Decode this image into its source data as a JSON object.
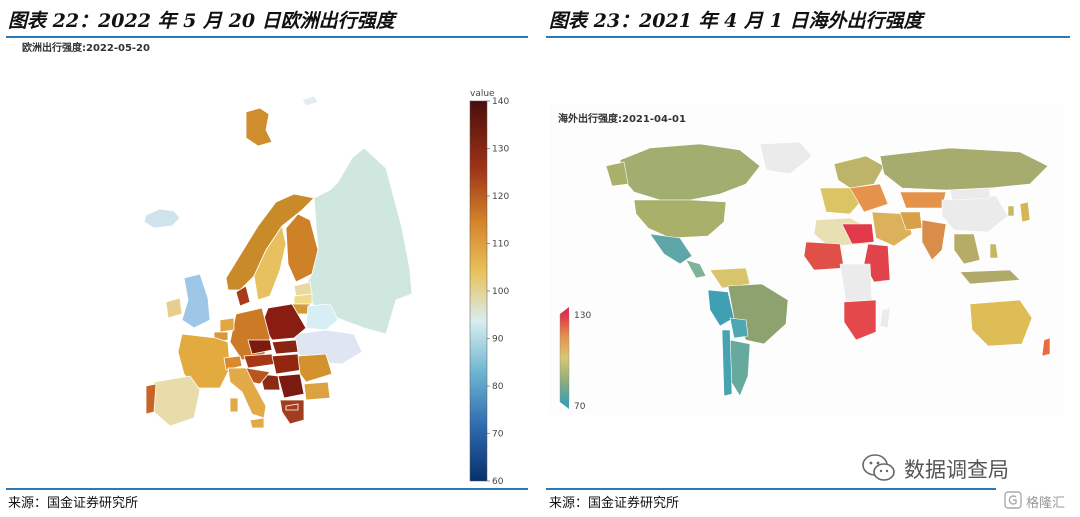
{
  "left_figure": {
    "title": "图表 22：2022 年 5 月 20 日欧洲出行强度",
    "map_title": "欧洲出行强度:2022-05-20",
    "colorbar": {
      "title": "value",
      "min": 60,
      "max": 140,
      "ticks": [
        "140",
        "130",
        "120",
        "110",
        "100",
        "90",
        "80",
        "70",
        "60"
      ]
    },
    "source": "来源：国金证券研究所"
  },
  "right_figure": {
    "title": "图表 23：2021 年 4 月 1 日海外出行强度",
    "map_title": "海外出行强度:2021-04-01",
    "colorbar": {
      "min": 70,
      "max": 130,
      "ticks": [
        "130",
        "70"
      ]
    },
    "source": "来源：国金证券研究所"
  },
  "watermark": {
    "text": "数据调查局",
    "icon": "wechat-icon"
  },
  "brand": {
    "text": "格隆汇",
    "icon": "glh-logo-icon"
  },
  "colors": {
    "rule": "#2a7ab8",
    "diverging_low": "#08306b",
    "diverging_mid": "#d8eef0",
    "diverging_high": "#4a0d0d",
    "spectral_low": "#3f9fb3",
    "spectral_mid": "#d9c873",
    "spectral_high": "#e0304a"
  }
}
